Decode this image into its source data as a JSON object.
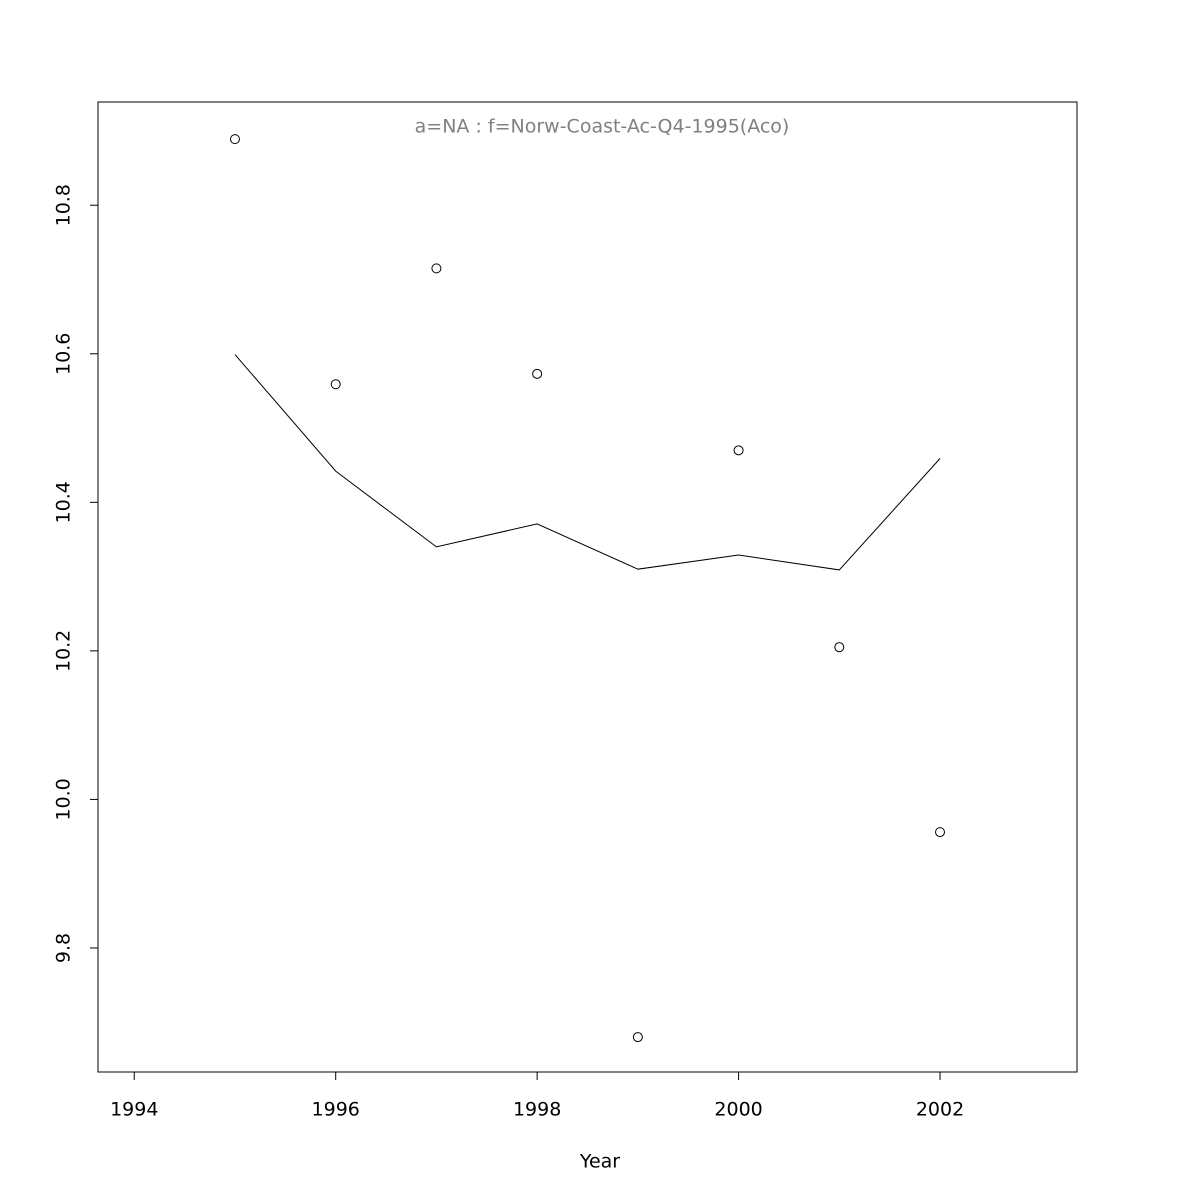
{
  "chart_data": {
    "type": "scatter",
    "title": "a=NA  :  f=Norw-Coast-Ac-Q4-1995(Aco)",
    "x_label": "Year",
    "x": [
      1995,
      1996,
      1997,
      1998,
      1999,
      2000,
      2001,
      2002
    ],
    "series": [
      {
        "mode": "markers",
        "color": "#000000",
        "values": [
          10.889,
          10.559,
          10.715,
          10.573,
          9.68,
          10.47,
          10.205,
          9.956
        ]
      },
      {
        "mode": "line",
        "color": "#000000",
        "values": [
          10.599,
          10.442,
          10.34,
          10.371,
          10.31,
          10.329,
          10.309,
          10.459
        ]
      }
    ],
    "title_color": "#808080",
    "xlim": [
      1993.64,
      2003.36
    ],
    "xticks": [
      1994,
      1996,
      1998,
      2000,
      2002
    ],
    "ylim": [
      9.633,
      10.939
    ],
    "yticks": [
      9.8,
      {
        "value": 10,
        "label": "10.0"
      },
      10.2,
      10.4,
      10.6,
      10.8
    ],
    "grid": false
  }
}
